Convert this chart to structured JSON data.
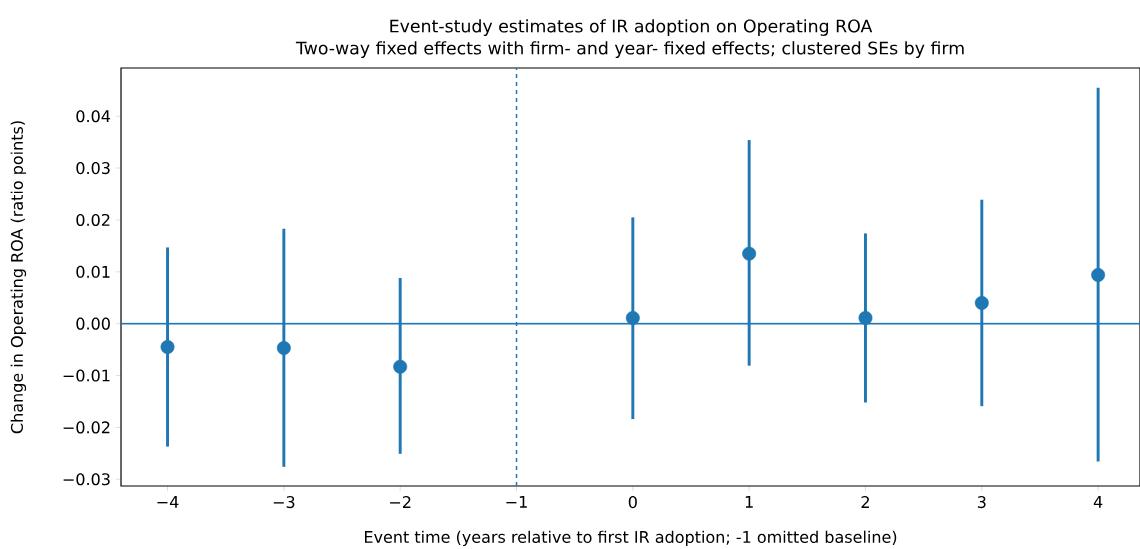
{
  "chart_data": {
    "type": "scatter",
    "title": "Event-study estimates of IR adoption on Operating ROA",
    "subtitle": "Two-way fixed effects with firm- and year- fixed effects; clustered SEs by firm",
    "xlabel": "Event time (years relative to first IR adoption; -1 omitted baseline)",
    "ylabel": "Change in Operating ROA (ratio points)",
    "x": [
      -4,
      -3,
      -2,
      0,
      1,
      2,
      3,
      4
    ],
    "values": [
      -0.0045,
      -0.0047,
      -0.0083,
      0.0011,
      0.0135,
      0.0011,
      0.004,
      0.0094
    ],
    "errors": [
      [
        -0.0237,
        0.0147
      ],
      [
        -0.0276,
        0.0183
      ],
      [
        -0.0251,
        0.0088
      ],
      [
        -0.0184,
        0.0205
      ],
      [
        -0.0081,
        0.0354
      ],
      [
        -0.0152,
        0.0174
      ],
      [
        -0.0159,
        0.0239
      ],
      [
        -0.0266,
        0.0455
      ]
    ],
    "color": "#1f77b4",
    "marker": "circle",
    "xlim": [
      -4.4,
      4.36
    ],
    "ylim": [
      -0.0313,
      0.0493
    ],
    "xticks": [
      {
        "value": -4,
        "label": "−4"
      },
      {
        "value": -3,
        "label": "−3"
      },
      {
        "value": -2,
        "label": "−2"
      },
      {
        "value": -1,
        "label": "−1"
      },
      0,
      1,
      2,
      3,
      4
    ],
    "yticks": [
      {
        "value": -0.03,
        "label": "−0.03"
      },
      {
        "value": -0.02,
        "label": "−0.02"
      },
      {
        "value": -0.01,
        "label": "−0.01"
      },
      {
        "value": 0,
        "label": "0.00"
      },
      {
        "value": 0.01,
        "label": "0.01"
      },
      {
        "value": 0.02,
        "label": "0.02"
      },
      {
        "value": 0.03,
        "label": "0.03"
      },
      {
        "value": 0.04,
        "label": "0.04"
      }
    ],
    "ref_lines": [
      {
        "axis": "y",
        "value": 0,
        "color": "#1f77b4",
        "line_style": "solid"
      },
      {
        "axis": "x",
        "value": -1,
        "color": "#1f77b4",
        "line_style": "dashed"
      }
    ]
  }
}
